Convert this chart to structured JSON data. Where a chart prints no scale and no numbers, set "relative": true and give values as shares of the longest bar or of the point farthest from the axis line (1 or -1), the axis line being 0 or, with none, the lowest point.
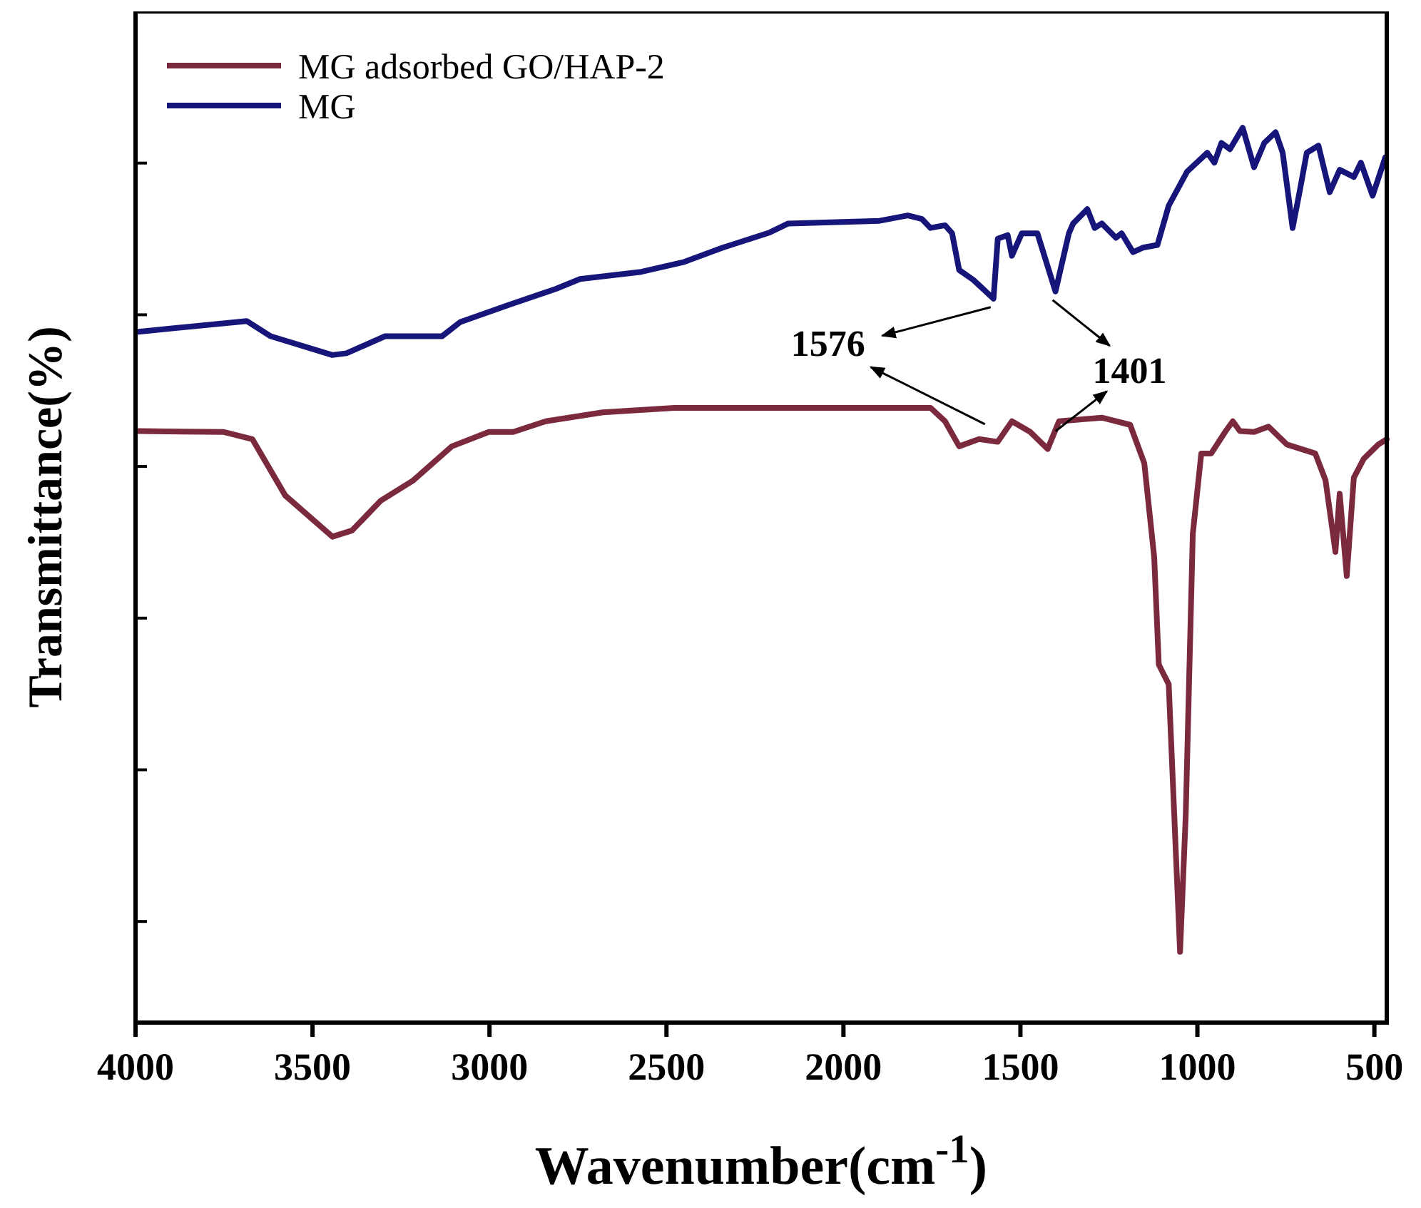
{
  "chart_data": {
    "type": "line",
    "relative": true,
    "xlabel": "Wavenumber(cm$^{-1}$)",
    "ylabel": "Transmittance(%)",
    "xlim": [
      4000,
      465
    ],
    "xticks": [
      4000,
      3500,
      3000,
      2500,
      2000,
      1500,
      1000,
      500
    ],
    "legend": "top left",
    "grid": false,
    "marker": "none",
    "line_style": "solid",
    "tick_labels": "x",
    "annotations": [
      {
        "text": "1576",
        "x": 1576,
        "y": 0.809
      },
      {
        "text": "1401",
        "x": 1401,
        "y": 0.817
      }
    ],
    "series": [
      {
        "name": "MG adsorbed GO/HAP-2",
        "color": "#7b2a3e",
        "x": [
          3992,
          3750,
          3670,
          3577,
          3444,
          3388,
          3308,
          3215,
          3106,
          3002,
          2933,
          2841,
          2680,
          2478,
          2208,
          1754,
          1713,
          1673,
          1617,
          1564,
          1524,
          1472,
          1423,
          1391,
          1270,
          1190,
          1150,
          1122,
          1109,
          1081,
          1049,
          1033,
          1013,
          989,
          961,
          920,
          900,
          880,
          840,
          799,
          747,
          667,
          638,
          610,
          598,
          578,
          558,
          530,
          489,
          465
        ],
        "values": [
          0.661,
          0.66,
          0.652,
          0.589,
          0.543,
          0.55,
          0.583,
          0.606,
          0.644,
          0.66,
          0.66,
          0.672,
          0.682,
          0.687,
          0.687,
          0.687,
          0.672,
          0.644,
          0.652,
          0.649,
          0.672,
          0.66,
          0.641,
          0.672,
          0.676,
          0.668,
          0.625,
          0.52,
          0.4,
          0.378,
          0.079,
          0.231,
          0.546,
          0.636,
          0.636,
          0.661,
          0.672,
          0.661,
          0.66,
          0.666,
          0.646,
          0.636,
          0.606,
          0.526,
          0.591,
          0.499,
          0.609,
          0.63,
          0.646,
          0.652
        ]
      },
      {
        "name": "MG",
        "color": "#16167a",
        "x": [
          3992,
          3686,
          3618,
          3444,
          3404,
          3295,
          3134,
          3082,
          2945,
          2812,
          2744,
          2571,
          2450,
          2341,
          2208,
          2156,
          1898,
          1818,
          1778,
          1754,
          1713,
          1693,
          1673,
          1633,
          1576,
          1564,
          1536,
          1524,
          1496,
          1452,
          1401,
          1363,
          1351,
          1311,
          1290,
          1270,
          1230,
          1214,
          1182,
          1154,
          1113,
          1081,
          1029,
          972,
          952,
          932,
          908,
          872,
          840,
          811,
          779,
          759,
          731,
          711,
          691,
          658,
          626,
          598,
          558,
          538,
          505,
          469
        ],
        "values": [
          0.772,
          0.784,
          0.767,
          0.746,
          0.748,
          0.767,
          0.767,
          0.783,
          0.802,
          0.82,
          0.831,
          0.839,
          0.85,
          0.866,
          0.883,
          0.893,
          0.896,
          0.902,
          0.898,
          0.888,
          0.891,
          0.882,
          0.841,
          0.83,
          0.809,
          0.876,
          0.88,
          0.857,
          0.882,
          0.882,
          0.817,
          0.882,
          0.893,
          0.909,
          0.888,
          0.893,
          0.877,
          0.882,
          0.861,
          0.866,
          0.869,
          0.913,
          0.951,
          0.972,
          0.961,
          0.983,
          0.976,
          1,
          0.956,
          0.983,
          0.995,
          0.972,
          0.888,
          0.929,
          0.972,
          0.98,
          0.928,
          0.953,
          0.945,
          0.961,
          0.924,
          0.967
        ]
      }
    ]
  }
}
